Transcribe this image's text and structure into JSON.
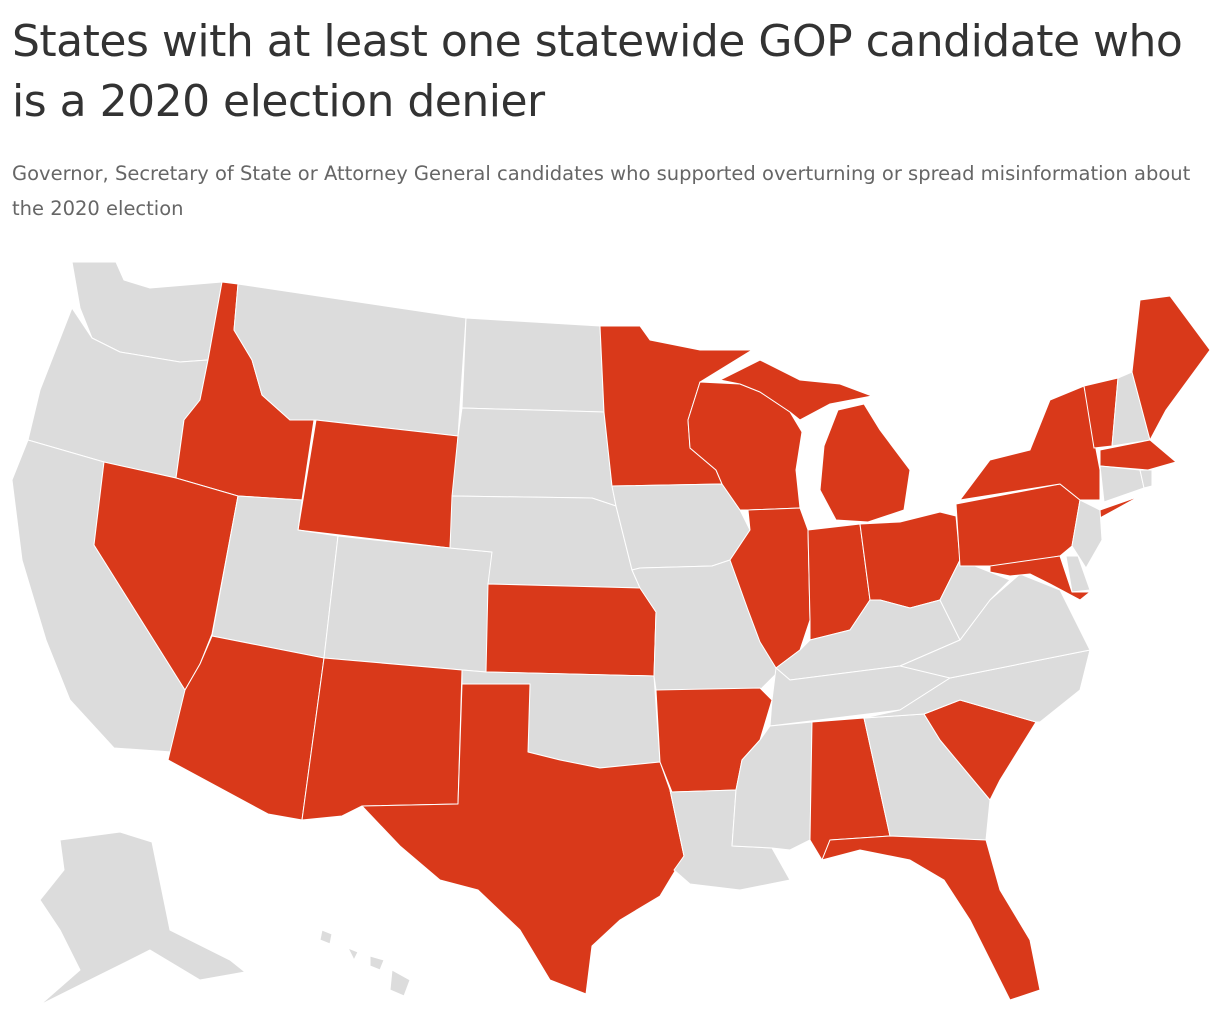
{
  "title": "States with at least one statewide GOP candidate who is a 2020 election denier",
  "subtitle": "Governor, Secretary of State or Attorney General candidates who supported overturning or spread misinformation about the 2020 election",
  "colors": {
    "highlight": "#d9391a",
    "other": "#dcdcdc",
    "border": "#ffffff"
  },
  "map_data": {
    "highlighted_states": [
      "ID",
      "NV",
      "AZ",
      "WY",
      "NM",
      "KS",
      "TX",
      "MN",
      "WI",
      "MI",
      "IL",
      "IN",
      "OH",
      "AR",
      "AL",
      "FL",
      "SC",
      "PA",
      "NY",
      "VT",
      "ME",
      "MA",
      "MD"
    ],
    "other_states": [
      "WA",
      "OR",
      "CA",
      "MT",
      "UT",
      "CO",
      "ND",
      "SD",
      "NE",
      "OK",
      "IA",
      "MO",
      "LA",
      "MS",
      "TN",
      "KY",
      "GA",
      "NC",
      "VA",
      "WV",
      "NJ",
      "DE",
      "CT",
      "RI",
      "NH",
      "AK",
      "HI"
    ]
  }
}
